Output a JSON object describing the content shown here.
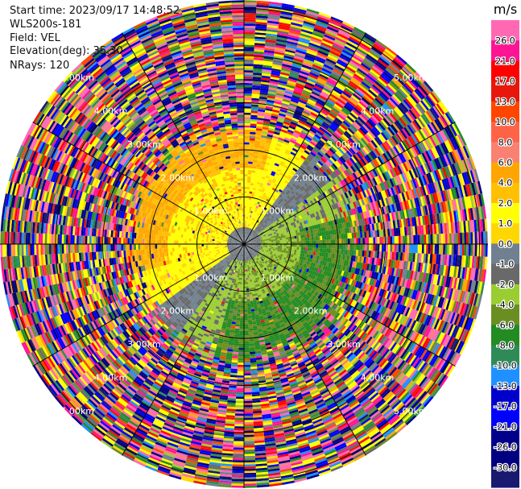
{
  "header": {
    "start_time": "Start time: 2023/09/17 14:48:52",
    "instrument": "WLS200s-181",
    "field": "Field: VEL",
    "elevation": "Elevation(deg): 35.30",
    "nrays": "NRays: 120"
  },
  "colorbar": {
    "unit": "m/s",
    "ticks": [
      "26.0",
      "21.0",
      "17.0",
      "13.0",
      "10.0",
      "8.0",
      "6.0",
      "4.0",
      "2.0",
      "1.0",
      "0.0",
      "-1.0",
      "-2.0",
      "-4.0",
      "-6.0",
      "-8.0",
      "-10.0",
      "-13.0",
      "-17.0",
      "-21.0",
      "-26.0",
      "-30.0"
    ],
    "colors": [
      "#ff69b4",
      "#ff1493",
      "#ff0000",
      "#e8170b",
      "#ff4500",
      "#ff6347",
      "#fa8072",
      "#ffa500",
      "#ffc000",
      "#ffff00",
      "#ffd700",
      "#708090",
      "#696969",
      "#9acd32",
      "#6b8e23",
      "#228b22",
      "#2e8b57",
      "#1e90ff",
      "#0000cd",
      "#0000ff",
      "#00008b",
      "#000080",
      "#191970"
    ]
  },
  "chart_data": {
    "type": "heatmap",
    "title": "",
    "projection": "polar PPI",
    "field": "VEL",
    "unit": "m/s",
    "nrays": 120,
    "range_rings_km": [
      1.0,
      2.0,
      3.0,
      4.0,
      5.0
    ],
    "ring_labels": [
      "1.00km",
      "2.00km",
      "3.00km",
      "4.00km",
      "5.00km"
    ],
    "azimuth_spokes_deg": [
      0,
      30,
      60,
      90,
      120,
      150,
      180,
      210,
      240,
      270,
      300,
      330
    ],
    "value_range": [
      -30.0,
      30.0
    ],
    "dominant_pattern": "positive velocities (~2 to 6 m/s) to the north-west within ~2 km, negative velocities (~-2 to -6 m/s) to the south-east within ~2 km, noisy multicolour returns beyond ~2.5 km"
  }
}
